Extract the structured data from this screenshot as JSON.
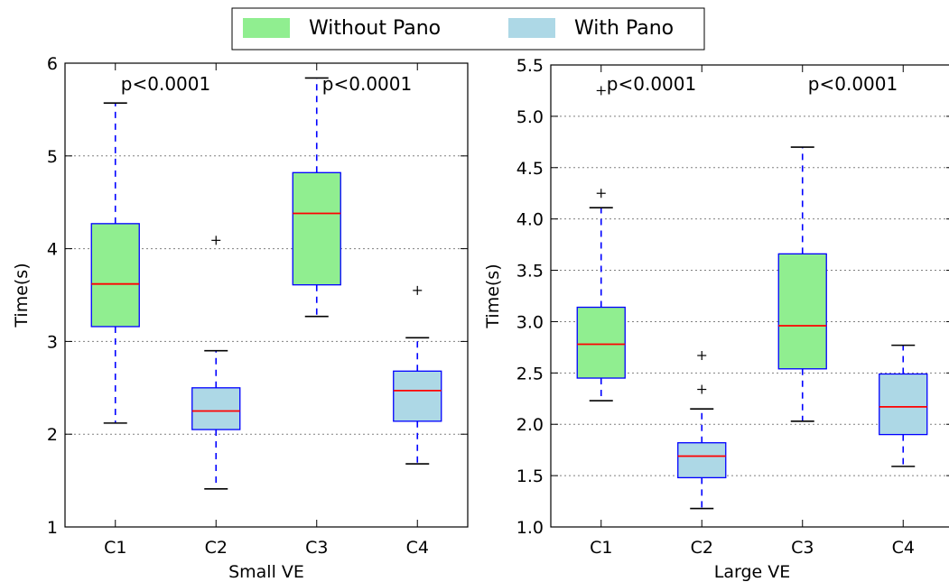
{
  "legend": {
    "items": [
      {
        "label": "Without Pano",
        "color": "#90ee90"
      },
      {
        "label": "With Pano",
        "color": "#add8e6"
      }
    ]
  },
  "colors": {
    "box_edge": "#0000ff",
    "median": "#ff0000",
    "whisker": "#0000ff",
    "grid": "#808080"
  },
  "chart_data": [
    {
      "type": "box",
      "xlabel": "Small VE",
      "ylabel": "Time(s)",
      "ylim": [
        1,
        6
      ],
      "yticks": [
        1,
        2,
        3,
        4,
        5,
        6
      ],
      "ytick_labels": [
        "1",
        "2",
        "3",
        "4",
        "5",
        "6"
      ],
      "grid": "horizontal dotted",
      "categories": [
        "C1",
        "C2",
        "C3",
        "C4"
      ],
      "groups": [
        "Without Pano",
        "With Pano",
        "Without Pano",
        "With Pano"
      ],
      "boxes": [
        {
          "whislo": 2.12,
          "q1": 3.16,
          "med": 3.62,
          "q3": 4.27,
          "whishi": 5.57,
          "fliers": []
        },
        {
          "whislo": 1.41,
          "q1": 2.05,
          "med": 2.25,
          "q3": 2.5,
          "whishi": 2.9,
          "fliers": [
            4.09
          ]
        },
        {
          "whislo": 3.27,
          "q1": 3.61,
          "med": 4.38,
          "q3": 4.82,
          "whishi": 5.84,
          "fliers": []
        },
        {
          "whislo": 1.68,
          "q1": 2.14,
          "med": 2.47,
          "q3": 2.68,
          "whishi": 3.04,
          "fliers": [
            3.55
          ]
        }
      ],
      "annotations": [
        {
          "text": "p<0.0001",
          "between": [
            "C1",
            "C2"
          ]
        },
        {
          "text": "p<0.0001",
          "between": [
            "C3",
            "C4"
          ]
        }
      ]
    },
    {
      "type": "box",
      "xlabel": "Large VE",
      "ylabel": "Time(s)",
      "ylim": [
        1.0,
        5.5
      ],
      "yticks": [
        1.0,
        1.5,
        2.0,
        2.5,
        3.0,
        3.5,
        4.0,
        4.5,
        5.0,
        5.5
      ],
      "ytick_labels": [
        "1.0",
        "1.5",
        "2.0",
        "2.5",
        "3.0",
        "3.5",
        "4.0",
        "4.5",
        "5.0",
        "5.5"
      ],
      "grid": "horizontal dotted",
      "categories": [
        "C1",
        "C2",
        "C3",
        "C4"
      ],
      "groups": [
        "Without Pano",
        "With Pano",
        "Without Pano",
        "With Pano"
      ],
      "boxes": [
        {
          "whislo": 2.23,
          "q1": 2.45,
          "med": 2.78,
          "q3": 3.14,
          "whishi": 4.11,
          "fliers": [
            4.25,
            5.25
          ]
        },
        {
          "whislo": 1.18,
          "q1": 1.48,
          "med": 1.69,
          "q3": 1.82,
          "whishi": 2.15,
          "fliers": [
            2.34,
            2.67
          ]
        },
        {
          "whislo": 2.03,
          "q1": 2.54,
          "med": 2.96,
          "q3": 3.66,
          "whishi": 4.7,
          "fliers": []
        },
        {
          "whislo": 1.59,
          "q1": 1.9,
          "med": 2.17,
          "q3": 2.49,
          "whishi": 2.77,
          "fliers": []
        }
      ],
      "annotations": [
        {
          "text": "p<0.0001",
          "between": [
            "C1",
            "C2"
          ]
        },
        {
          "text": "p<0.0001",
          "between": [
            "C3",
            "C4"
          ]
        }
      ]
    }
  ]
}
